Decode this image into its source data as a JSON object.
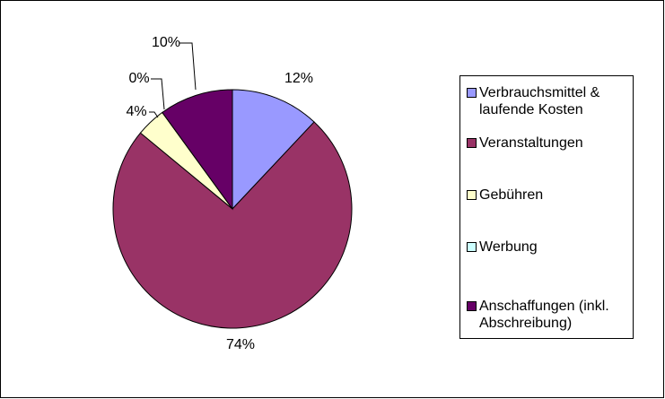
{
  "chart_data": {
    "type": "pie",
    "categories": [
      "Verbrauchsmittel & laufende Kosten",
      "Veranstaltungen",
      "Gebühren",
      "Werbung",
      "Anschaffungen (inkl. Abschreibung)"
    ],
    "values": [
      12,
      74,
      4,
      0,
      10
    ],
    "value_labels": [
      "12%",
      "74%",
      "4%",
      "0%",
      "10%"
    ],
    "colors": [
      "#9999ff",
      "#993366",
      "#ffffcc",
      "#ccffff",
      "#660066"
    ],
    "legend": "right"
  }
}
